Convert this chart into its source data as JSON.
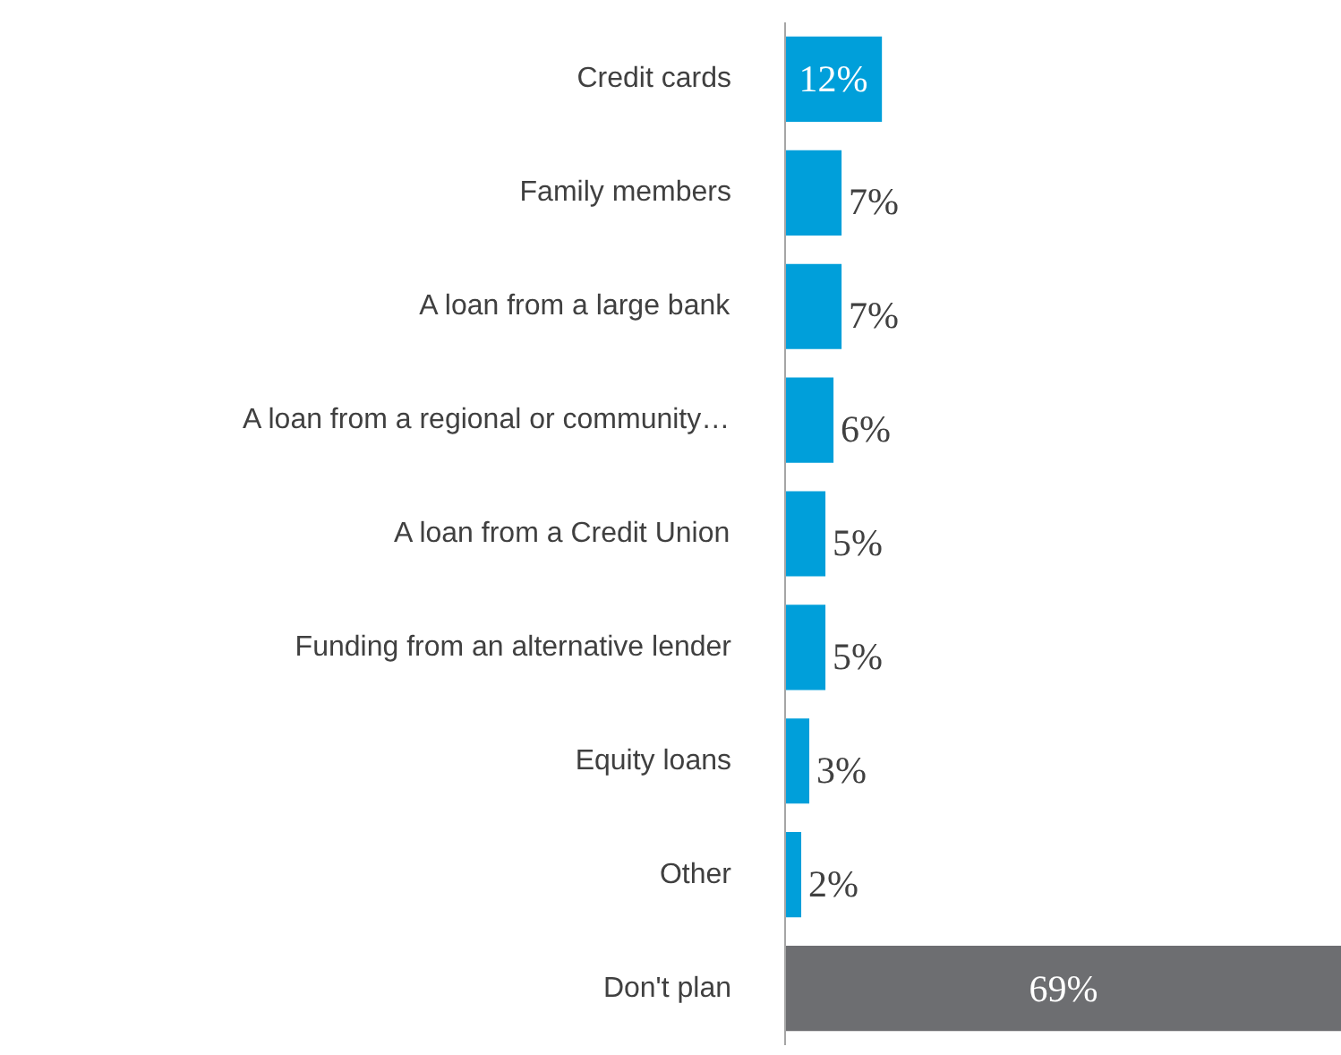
{
  "chart_data": {
    "type": "bar",
    "orientation": "horizontal",
    "categories": [
      "Credit cards",
      "Family members",
      "A loan from a large bank",
      "A loan from a regional or community…",
      "A loan from a Credit Union",
      "Funding from an alternative lender",
      "Equity loans",
      "Other",
      "Don't plan"
    ],
    "values": [
      12,
      7,
      7,
      6,
      5,
      5,
      3,
      2,
      69
    ],
    "colors": [
      "#009fda",
      "#009fda",
      "#009fda",
      "#009fda",
      "#009fda",
      "#009fda",
      "#009fda",
      "#009fda",
      "#6d6e71"
    ],
    "value_labels": [
      "12%",
      "7%",
      "7%",
      "6%",
      "5%",
      "5%",
      "3%",
      "2%",
      "69%"
    ]
  }
}
